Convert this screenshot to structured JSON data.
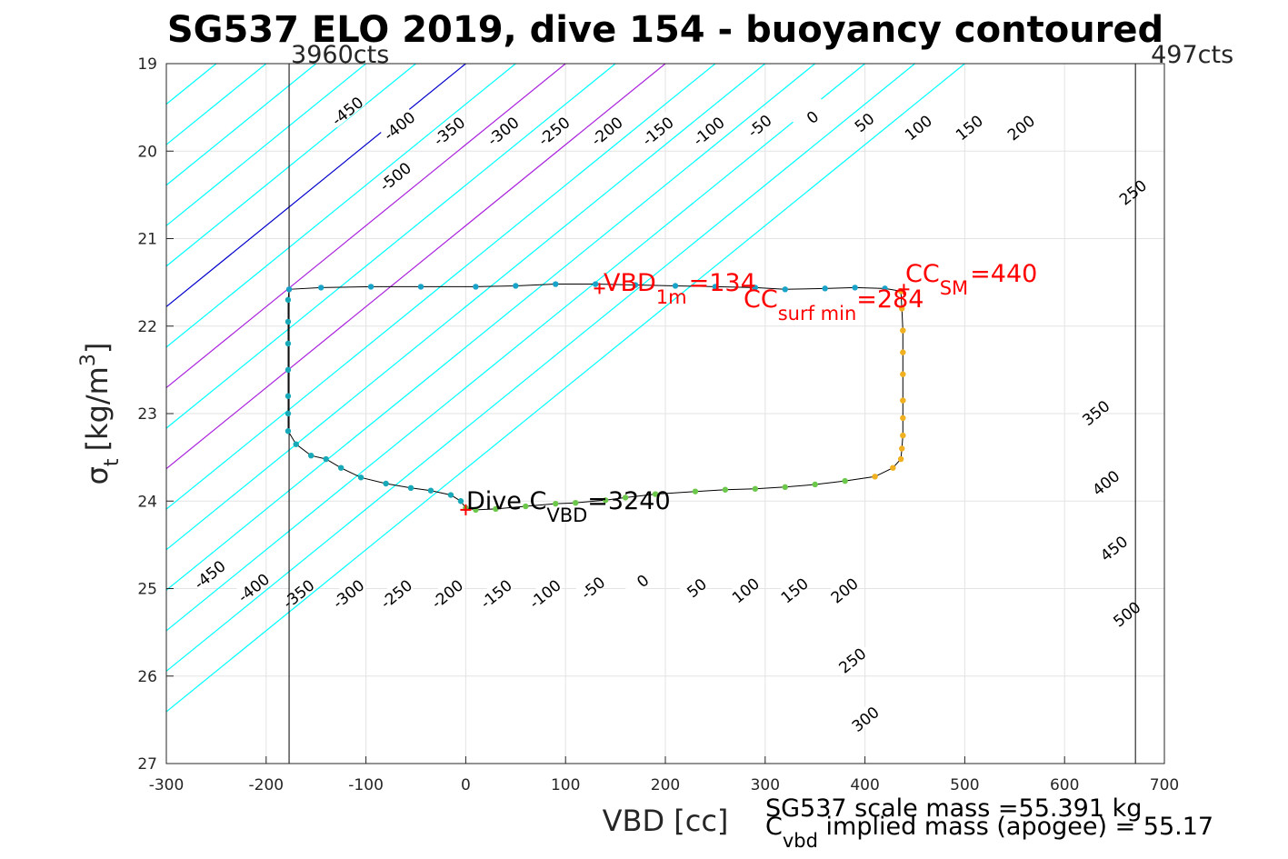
{
  "chart_data": {
    "type": "scatter",
    "title": "SG537 ELO 2019, dive 154 - buoyancy contoured",
    "xlabel": "VBD [cc]",
    "ylabel_sym": "σ",
    "ylabel_sub": "t",
    "ylabel_unit": "[kg/m",
    "ylabel_sup": "3",
    "ylabel_close": "]",
    "xlim": [
      -300,
      700
    ],
    "ylim": [
      27,
      19
    ],
    "xticks": [
      "-300",
      "-200",
      "-100",
      "0",
      "100",
      "200",
      "300",
      "400",
      "500",
      "600",
      "700"
    ],
    "yticks": [
      "19",
      "20",
      "21",
      "22",
      "23",
      "24",
      "25",
      "26",
      "27"
    ],
    "grid": true,
    "vlines": [
      {
        "x": -177,
        "label": "3960cts"
      },
      {
        "x": 671,
        "label": "497cts"
      }
    ],
    "contour_slope_cc_per_sigma": 108,
    "contours": [
      {
        "value": -500,
        "label": "-500",
        "color": "#00ffff"
      },
      {
        "value": -450,
        "label": "-450",
        "color": "#00ffff"
      },
      {
        "value": -400,
        "label": "-400",
        "color": "#00ffff"
      },
      {
        "value": -350,
        "label": "-350",
        "color": "#00ffff"
      },
      {
        "value": -300,
        "label": "-300",
        "color": "#00ffff"
      },
      {
        "value": -250,
        "label": "-250",
        "color": "#00ffff"
      },
      {
        "value": -200,
        "label": "-200",
        "color": "#00ffff"
      },
      {
        "value": -150,
        "label": "-150",
        "color": "#00ffff"
      },
      {
        "value": -100,
        "label": "-100",
        "color": "#00ffff"
      },
      {
        "value": -50,
        "label": "-50",
        "color": "#00ffff"
      },
      {
        "value": 0,
        "label": "0",
        "color": "#0000cc"
      },
      {
        "value": 50,
        "label": "50",
        "color": "#00ffff"
      },
      {
        "value": 100,
        "label": "100",
        "color": "#aa22dd"
      },
      {
        "value": 150,
        "label": "150",
        "color": "#00ffff"
      },
      {
        "value": 200,
        "label": "200",
        "color": "#aa22dd"
      },
      {
        "value": 250,
        "label": "250",
        "color": "#00ffff"
      },
      {
        "value": 300,
        "label": "300",
        "color": "#00ffff"
      },
      {
        "value": 350,
        "label": "350",
        "color": "#00ffff"
      },
      {
        "value": 400,
        "label": "400",
        "color": "#00ffff"
      },
      {
        "value": 450,
        "label": "450",
        "color": "#00ffff"
      },
      {
        "value": 500,
        "label": "500",
        "color": "#00ffff"
      }
    ],
    "contour_labels": [
      {
        "text": "-450",
        "x": -118,
        "y": 19.55
      },
      {
        "text": "-400",
        "x": -66,
        "y": 19.72
      },
      {
        "text": "-350",
        "x": -16,
        "y": 19.78
      },
      {
        "text": "-300",
        "x": 38,
        "y": 19.78
      },
      {
        "text": "-250",
        "x": 89,
        "y": 19.78
      },
      {
        "text": "-200",
        "x": 142,
        "y": 19.78
      },
      {
        "text": "-150",
        "x": 193,
        "y": 19.78
      },
      {
        "text": "-100",
        "x": 244,
        "y": 19.78
      },
      {
        "text": "-50",
        "x": 295,
        "y": 19.72
      },
      {
        "text": "0",
        "x": 348,
        "y": 19.62
      },
      {
        "text": "50",
        "x": 400,
        "y": 19.68
      },
      {
        "text": "100",
        "x": 454,
        "y": 19.74
      },
      {
        "text": "150",
        "x": 505,
        "y": 19.74
      },
      {
        "text": "200",
        "x": 557,
        "y": 19.74
      },
      {
        "text": "-500",
        "x": -70,
        "y": 20.3
      },
      {
        "text": "250",
        "x": 669,
        "y": 20.48
      },
      {
        "text": "350",
        "x": 632,
        "y": 23.0
      },
      {
        "text": "400",
        "x": 642,
        "y": 23.8
      },
      {
        "text": "450",
        "x": 650,
        "y": 24.55
      },
      {
        "text": "500",
        "x": 663,
        "y": 25.3
      },
      {
        "text": "-450",
        "x": -256,
        "y": 24.85
      },
      {
        "text": "-400",
        "x": -212,
        "y": 25.0
      },
      {
        "text": "-350",
        "x": -167,
        "y": 25.07
      },
      {
        "text": "-300",
        "x": -117,
        "y": 25.07
      },
      {
        "text": "-250",
        "x": -69,
        "y": 25.07
      },
      {
        "text": "-200",
        "x": -18,
        "y": 25.07
      },
      {
        "text": "-150",
        "x": 31,
        "y": 25.07
      },
      {
        "text": "-100",
        "x": 80,
        "y": 25.07
      },
      {
        "text": "-50",
        "x": 128,
        "y": 25.0
      },
      {
        "text": "0",
        "x": 178,
        "y": 24.92
      },
      {
        "text": "50",
        "x": 232,
        "y": 25.0
      },
      {
        "text": "100",
        "x": 281,
        "y": 25.03
      },
      {
        "text": "150",
        "x": 330,
        "y": 25.03
      },
      {
        "text": "200",
        "x": 380,
        "y": 25.03
      },
      {
        "text": "250",
        "x": 388,
        "y": 25.83
      },
      {
        "text": "300",
        "x": 401,
        "y": 26.5
      }
    ],
    "series": [
      {
        "points": [
          [
            0,
            24.08
          ],
          [
            10,
            24.1
          ],
          [
            30,
            24.09
          ],
          [
            60,
            24.06
          ],
          [
            90,
            24.03
          ],
          [
            110,
            24.02
          ],
          [
            140,
            23.99
          ],
          [
            160,
            23.96
          ],
          [
            190,
            23.92
          ],
          [
            230,
            23.89
          ],
          [
            260,
            23.87
          ],
          [
            290,
            23.86
          ],
          [
            320,
            23.84
          ],
          [
            350,
            23.81
          ],
          [
            380,
            23.77
          ],
          [
            410,
            23.72
          ],
          [
            428,
            23.62
          ],
          [
            436,
            23.52
          ],
          [
            437,
            23.4
          ],
          [
            438,
            23.25
          ],
          [
            438,
            23.05
          ],
          [
            438,
            22.85
          ],
          [
            438,
            22.55
          ],
          [
            438,
            22.3
          ],
          [
            438,
            22.05
          ],
          [
            437,
            21.8
          ],
          [
            436,
            21.6
          ],
          [
            420,
            21.57
          ],
          [
            390,
            21.56
          ],
          [
            360,
            21.57
          ],
          [
            320,
            21.58
          ],
          [
            290,
            21.56
          ],
          [
            250,
            21.55
          ],
          [
            210,
            21.54
          ],
          [
            170,
            21.53
          ],
          [
            130,
            21.52
          ],
          [
            90,
            21.52
          ],
          [
            50,
            21.54
          ],
          [
            10,
            21.55
          ],
          [
            -45,
            21.55
          ],
          [
            -95,
            21.55
          ],
          [
            -145,
            21.56
          ],
          [
            -177,
            21.58
          ],
          [
            -178,
            21.7
          ],
          [
            -178,
            21.95
          ],
          [
            -178,
            22.2
          ],
          [
            -178,
            22.5
          ],
          [
            -178,
            22.8
          ],
          [
            -178,
            23.0
          ],
          [
            -178,
            23.2
          ],
          [
            -170,
            23.35
          ],
          [
            -155,
            23.48
          ],
          [
            -140,
            23.52
          ],
          [
            -125,
            23.62
          ],
          [
            -105,
            23.73
          ],
          [
            -80,
            23.8
          ],
          [
            -55,
            23.85
          ],
          [
            -35,
            23.88
          ],
          [
            -15,
            23.93
          ],
          [
            -5,
            24.0
          ]
        ]
      }
    ],
    "markers": [
      {
        "x": 0,
        "y": 24.1,
        "label_main": "Dive C",
        "label_sub": "VBD",
        "label_tail": "=3240"
      },
      {
        "x": 134,
        "y": 21.57,
        "label_main": "VBD",
        "label_sub": "1m",
        "label_tail": "=134"
      },
      {
        "x": 439,
        "y": 21.58,
        "label_main": "CC",
        "label_sub": "SM",
        "label_tail": "=440"
      },
      {
        "label_main": "CC",
        "label_sub": "surf min",
        "label_tail": "=284"
      }
    ],
    "footer": {
      "line1": "SG537 scale mass =55.391 kg",
      "line2_main": "C",
      "line2_sub": "vbd",
      "line2_tail": " implied mass (apogee) = 55.17"
    }
  }
}
